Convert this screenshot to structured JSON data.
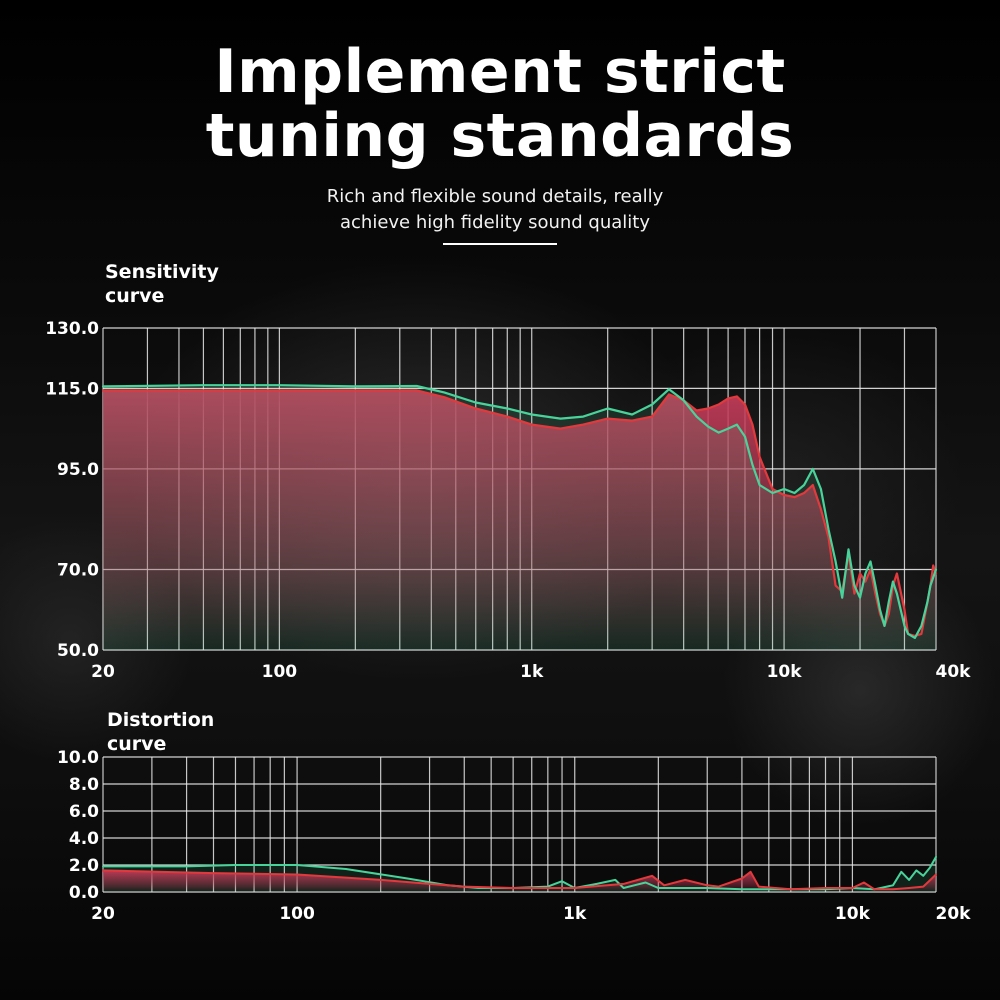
{
  "headline": {
    "line1": "Implement strict",
    "line2": "tuning standards"
  },
  "subtitle": {
    "line1": "Rich and flexible sound details, really",
    "line2": "achieve high fidelity sound quality"
  },
  "colors": {
    "red": "#e2393c",
    "green": "#48d39a",
    "fill_top": "#c23b58",
    "grid": "#e8e8e8"
  },
  "chart_data": [
    {
      "type": "line",
      "title": "Sensitivity curve",
      "title_lines": [
        "Sensitivity",
        "curve"
      ],
      "x_scale": "log",
      "xlim": [
        20,
        40000
      ],
      "ylim": [
        50,
        130
      ],
      "x_ticks": [
        {
          "value": 20,
          "label": "20"
        },
        {
          "value": 100,
          "label": "100"
        },
        {
          "value": 1000,
          "label": "1k"
        },
        {
          "value": 10000,
          "label": "10k"
        },
        {
          "value": 40000,
          "label": "40k"
        }
      ],
      "y_ticks": [
        {
          "value": 130,
          "label": "130.0"
        },
        {
          "value": 115,
          "label": "115.0"
        },
        {
          "value": 95,
          "label": "95.0"
        },
        {
          "value": 70,
          "label": "70.0"
        },
        {
          "value": 50,
          "label": "50.0"
        }
      ],
      "y_gridlines": [
        130,
        115,
        95,
        70,
        50
      ],
      "grid": true,
      "series": [
        {
          "color": "red",
          "points": [
            [
              20,
              114.5
            ],
            [
              50,
              114.5
            ],
            [
              100,
              114.5
            ],
            [
              200,
              114.5
            ],
            [
              350,
              114.5
            ],
            [
              450,
              112.8
            ],
            [
              600,
              110
            ],
            [
              800,
              108
            ],
            [
              1000,
              106
            ],
            [
              1300,
              105
            ],
            [
              1600,
              106
            ],
            [
              2000,
              107.5
            ],
            [
              2500,
              107
            ],
            [
              3000,
              108
            ],
            [
              3500,
              113.5
            ],
            [
              4000,
              112
            ],
            [
              4500,
              109.5
            ],
            [
              5000,
              110
            ],
            [
              5500,
              111
            ],
            [
              6000,
              112.5
            ],
            [
              6500,
              113
            ],
            [
              7000,
              111
            ],
            [
              7500,
              106
            ],
            [
              8000,
              98
            ],
            [
              9000,
              90
            ],
            [
              10000,
              88.5
            ],
            [
              11000,
              88
            ],
            [
              12000,
              89
            ],
            [
              13000,
              91
            ],
            [
              14000,
              85
            ],
            [
              15000,
              78
            ],
            [
              16000,
              66
            ],
            [
              17000,
              64.5
            ],
            [
              18000,
              74
            ],
            [
              19000,
              64
            ],
            [
              20000,
              69
            ],
            [
              21000,
              67
            ],
            [
              22000,
              70
            ],
            [
              23000,
              64
            ],
            [
              24000,
              59
            ],
            [
              25000,
              56
            ],
            [
              26000,
              59
            ],
            [
              27000,
              66
            ],
            [
              28000,
              69
            ],
            [
              30000,
              60
            ],
            [
              31000,
              54
            ],
            [
              33000,
              53.5
            ],
            [
              35000,
              54
            ],
            [
              37000,
              62
            ],
            [
              38000,
              66
            ],
            [
              39000,
              71
            ],
            [
              40000,
              69
            ]
          ]
        },
        {
          "color": "green",
          "points": [
            [
              20,
              115.5
            ],
            [
              50,
              115.8
            ],
            [
              100,
              115.8
            ],
            [
              200,
              115.5
            ],
            [
              350,
              115.6
            ],
            [
              450,
              114
            ],
            [
              600,
              111.5
            ],
            [
              800,
              110
            ],
            [
              1000,
              108.5
            ],
            [
              1300,
              107.5
            ],
            [
              1600,
              108
            ],
            [
              2000,
              110
            ],
            [
              2500,
              108.5
            ],
            [
              3000,
              111
            ],
            [
              3500,
              114.8
            ],
            [
              4000,
              112
            ],
            [
              4500,
              108
            ],
            [
              5000,
              105.5
            ],
            [
              5500,
              104
            ],
            [
              6000,
              105
            ],
            [
              6500,
              106
            ],
            [
              7000,
              103
            ],
            [
              7500,
              96
            ],
            [
              8000,
              91
            ],
            [
              9000,
              89
            ],
            [
              10000,
              90
            ],
            [
              11000,
              89
            ],
            [
              12000,
              91
            ],
            [
              13000,
              95
            ],
            [
              14000,
              90
            ],
            [
              15000,
              80
            ],
            [
              16000,
              72
            ],
            [
              17000,
              63
            ],
            [
              18000,
              75
            ],
            [
              19000,
              66
            ],
            [
              20000,
              63
            ],
            [
              21000,
              69
            ],
            [
              22000,
              72
            ],
            [
              23000,
              66
            ],
            [
              24000,
              60
            ],
            [
              25000,
              56
            ],
            [
              26000,
              62
            ],
            [
              27000,
              67
            ],
            [
              28000,
              64
            ],
            [
              30000,
              56
            ],
            [
              31000,
              54
            ],
            [
              33000,
              53
            ],
            [
              35000,
              56
            ],
            [
              37000,
              62
            ],
            [
              38000,
              66
            ],
            [
              40000,
              70
            ]
          ]
        }
      ]
    },
    {
      "type": "line",
      "title": "Distortion curve",
      "title_lines": [
        "Distortion",
        "curve"
      ],
      "x_scale": "log",
      "xlim": [
        20,
        20000
      ],
      "ylim": [
        0,
        10
      ],
      "x_ticks": [
        {
          "value": 20,
          "label": "20"
        },
        {
          "value": 100,
          "label": "100"
        },
        {
          "value": 1000,
          "label": "1k"
        },
        {
          "value": 10000,
          "label": "10k"
        },
        {
          "value": 20000,
          "label": "20k"
        }
      ],
      "y_ticks": [
        {
          "value": 10,
          "label": "10.0"
        },
        {
          "value": 8,
          "label": "8.0"
        },
        {
          "value": 6,
          "label": "6.0"
        },
        {
          "value": 4,
          "label": "4.0"
        },
        {
          "value": 2,
          "label": "2.0"
        },
        {
          "value": 0,
          "label": "0.0"
        }
      ],
      "grid": true,
      "series": [
        {
          "color": "green",
          "points": [
            [
              20,
              1.9
            ],
            [
              40,
              1.9
            ],
            [
              60,
              2.0
            ],
            [
              100,
              2.0
            ],
            [
              150,
              1.7
            ],
            [
              250,
              1.0
            ],
            [
              350,
              0.5
            ],
            [
              450,
              0.3
            ],
            [
              600,
              0.3
            ],
            [
              800,
              0.4
            ],
            [
              900,
              0.8
            ],
            [
              1000,
              0.3
            ],
            [
              1200,
              0.6
            ],
            [
              1400,
              0.9
            ],
            [
              1500,
              0.3
            ],
            [
              1800,
              0.7
            ],
            [
              2000,
              0.3
            ],
            [
              3000,
              0.3
            ],
            [
              4000,
              0.2
            ],
            [
              6000,
              0.2
            ],
            [
              8000,
              0.2
            ],
            [
              10000,
              0.3
            ],
            [
              12000,
              0.2
            ],
            [
              14000,
              0.5
            ],
            [
              15000,
              1.5
            ],
            [
              16000,
              0.9
            ],
            [
              17000,
              1.6
            ],
            [
              18000,
              1.2
            ],
            [
              19000,
              1.8
            ],
            [
              20000,
              2.6
            ]
          ]
        },
        {
          "color": "red",
          "points": [
            [
              20,
              1.6
            ],
            [
              50,
              1.4
            ],
            [
              100,
              1.3
            ],
            [
              200,
              0.9
            ],
            [
              300,
              0.6
            ],
            [
              400,
              0.4
            ],
            [
              600,
              0.3
            ],
            [
              1000,
              0.3
            ],
            [
              1500,
              0.6
            ],
            [
              1900,
              1.2
            ],
            [
              2100,
              0.5
            ],
            [
              2500,
              0.9
            ],
            [
              3000,
              0.5
            ],
            [
              3300,
              0.4
            ],
            [
              4000,
              1.0
            ],
            [
              4300,
              1.5
            ],
            [
              4600,
              0.4
            ],
            [
              6000,
              0.2
            ],
            [
              8000,
              0.3
            ],
            [
              10000,
              0.3
            ],
            [
              11000,
              0.7
            ],
            [
              12000,
              0.2
            ],
            [
              14000,
              0.2
            ],
            [
              16000,
              0.3
            ],
            [
              18000,
              0.4
            ],
            [
              20000,
              1.3
            ]
          ]
        }
      ]
    }
  ]
}
